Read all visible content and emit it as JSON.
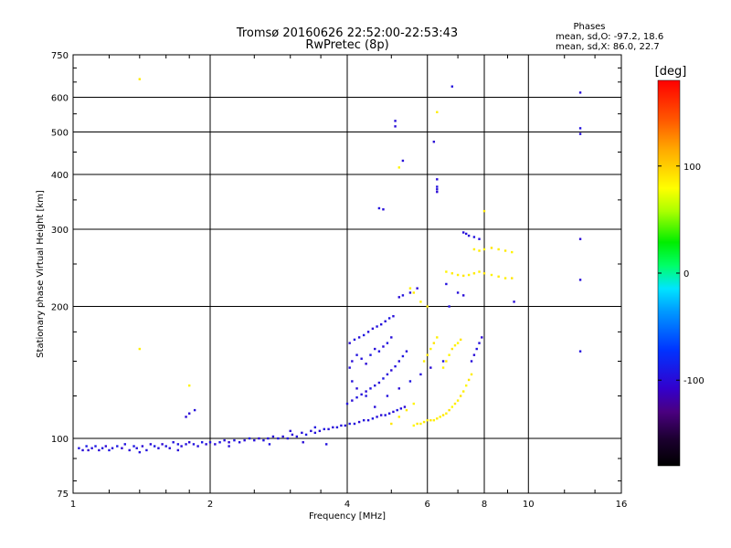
{
  "chart_data": {
    "type": "scatter",
    "title": "Tromsø 20160626 22:52:00-22:53:43",
    "subtitle": "RwPretec (8p)",
    "xlabel": "Frequency [MHz]",
    "ylabel": "Stationary phase Virtual Height [km]",
    "x_scale": "log",
    "y_scale": "log",
    "xlim": [
      1,
      16
    ],
    "ylim": [
      75,
      750
    ],
    "x_ticks": [
      1,
      2,
      4,
      6,
      8,
      10,
      16
    ],
    "y_ticks": [
      75,
      100,
      200,
      300,
      400,
      500,
      600,
      750
    ],
    "grid": true,
    "legend": {
      "title": "Phases",
      "lines": [
        "mean, sd,O: -97.2, 18.6",
        "mean, sd,X:  86.0, 22.7"
      ]
    },
    "colorbar": {
      "label": "[deg]",
      "range": [
        -180,
        180
      ],
      "ticks": [
        100,
        0,
        -100
      ]
    },
    "series": [
      {
        "name": "O",
        "points": [
          [
            1.03,
            95,
            -95
          ],
          [
            1.05,
            94,
            -100
          ],
          [
            1.07,
            96,
            -90
          ],
          [
            1.08,
            94,
            -105
          ],
          [
            1.1,
            95,
            -98
          ],
          [
            1.12,
            96,
            -92
          ],
          [
            1.14,
            94,
            -100
          ],
          [
            1.16,
            95,
            -96
          ],
          [
            1.18,
            96,
            -102
          ],
          [
            1.2,
            94,
            -94
          ],
          [
            1.22,
            95,
            -99
          ],
          [
            1.25,
            96,
            -91
          ],
          [
            1.28,
            95,
            -104
          ],
          [
            1.3,
            97,
            -96
          ],
          [
            1.33,
            94,
            -100
          ],
          [
            1.36,
            96,
            -93
          ],
          [
            1.38,
            95,
            -98
          ],
          [
            1.42,
            96,
            -102
          ],
          [
            1.45,
            94,
            -95
          ],
          [
            1.48,
            97,
            -100
          ],
          [
            1.51,
            96,
            -92
          ],
          [
            1.54,
            95,
            -99
          ],
          [
            1.57,
            97,
            -103
          ],
          [
            1.6,
            96,
            -94
          ],
          [
            1.63,
            95,
            -100
          ],
          [
            1.66,
            98,
            -96
          ],
          [
            1.7,
            97,
            -93
          ],
          [
            1.73,
            96,
            -100
          ],
          [
            1.77,
            97,
            -97
          ],
          [
            1.8,
            98,
            -102
          ],
          [
            1.84,
            97,
            -95
          ],
          [
            1.88,
            96,
            -98
          ],
          [
            1.92,
            98,
            -92
          ],
          [
            1.96,
            97,
            -100
          ],
          [
            2.0,
            98,
            -96
          ],
          [
            2.05,
            97,
            -101
          ],
          [
            2.1,
            98,
            -94
          ],
          [
            2.15,
            99,
            -98
          ],
          [
            2.2,
            98,
            -103
          ],
          [
            2.26,
            99,
            -95
          ],
          [
            2.32,
            98,
            -97
          ],
          [
            2.38,
            99,
            -100
          ],
          [
            2.44,
            100,
            -93
          ],
          [
            2.5,
            99,
            -98
          ],
          [
            2.56,
            100,
            -102
          ],
          [
            2.62,
            99,
            -95
          ],
          [
            2.68,
            100,
            -97
          ],
          [
            2.75,
            101,
            -100
          ],
          [
            2.82,
            100,
            -94
          ],
          [
            2.89,
            101,
            -99
          ],
          [
            2.96,
            100,
            -96
          ],
          [
            3.03,
            102,
            -101
          ],
          [
            3.1,
            101,
            -95
          ],
          [
            3.18,
            103,
            -98
          ],
          [
            3.25,
            102,
            -92
          ],
          [
            3.33,
            104,
            -100
          ],
          [
            3.4,
            103,
            -96
          ],
          [
            3.48,
            104,
            -99
          ],
          [
            3.56,
            105,
            -94
          ],
          [
            3.64,
            105,
            -98
          ],
          [
            3.72,
            106,
            -101
          ],
          [
            3.8,
            106,
            -95
          ],
          [
            3.88,
            107,
            -97
          ],
          [
            3.96,
            107,
            -100
          ],
          [
            4.05,
            108,
            -93
          ],
          [
            4.15,
            108,
            -98
          ],
          [
            4.25,
            109,
            -102
          ],
          [
            4.35,
            110,
            -96
          ],
          [
            4.45,
            110,
            -99
          ],
          [
            4.55,
            111,
            -94
          ],
          [
            4.65,
            112,
            -98
          ],
          [
            4.75,
            113,
            -101
          ],
          [
            4.85,
            113,
            -95
          ],
          [
            4.95,
            114,
            -97
          ],
          [
            5.05,
            115,
            -100
          ],
          [
            5.15,
            116,
            -93
          ],
          [
            5.25,
            117,
            -98
          ],
          [
            5.35,
            118,
            -102
          ],
          [
            1.4,
            93,
            -96
          ],
          [
            1.7,
            94,
            -100
          ],
          [
            2.2,
            96,
            -98
          ],
          [
            2.7,
            97,
            -94
          ],
          [
            3.2,
            98,
            -100
          ],
          [
            3.6,
            97,
            -96
          ],
          [
            3.0,
            104,
            -99
          ],
          [
            3.4,
            106,
            -95
          ],
          [
            1.8,
            114,
            -100
          ],
          [
            1.85,
            116,
            -98
          ],
          [
            1.77,
            112,
            -102
          ],
          [
            4.0,
            120,
            -96
          ],
          [
            4.1,
            122,
            -100
          ],
          [
            4.2,
            124,
            -94
          ],
          [
            4.3,
            126,
            -98
          ],
          [
            4.4,
            128,
            -101
          ],
          [
            4.5,
            130,
            -95
          ],
          [
            4.6,
            132,
            -97
          ],
          [
            4.7,
            134,
            -100
          ],
          [
            4.8,
            137,
            -93
          ],
          [
            4.9,
            140,
            -98
          ],
          [
            5.0,
            143,
            -102
          ],
          [
            5.1,
            146,
            -96
          ],
          [
            5.2,
            150,
            -99
          ],
          [
            5.3,
            154,
            -94
          ],
          [
            5.4,
            158,
            -98
          ],
          [
            4.05,
            145,
            -98
          ],
          [
            4.1,
            150,
            -100
          ],
          [
            4.2,
            155,
            -95
          ],
          [
            4.3,
            152,
            -97
          ],
          [
            4.4,
            148,
            -101
          ],
          [
            4.5,
            155,
            -94
          ],
          [
            4.6,
            160,
            -99
          ],
          [
            4.7,
            158,
            -96
          ],
          [
            4.8,
            162,
            -100
          ],
          [
            4.9,
            165,
            -93
          ],
          [
            5.0,
            170,
            -98
          ],
          [
            4.05,
            165,
            -100
          ],
          [
            4.15,
            168,
            -96
          ],
          [
            4.25,
            170,
            -99
          ],
          [
            4.35,
            172,
            -94
          ],
          [
            4.45,
            175,
            -98
          ],
          [
            4.55,
            178,
            -102
          ],
          [
            4.65,
            180,
            -95
          ],
          [
            4.75,
            182,
            -97
          ],
          [
            4.85,
            185,
            -100
          ],
          [
            4.95,
            188,
            -93
          ],
          [
            5.05,
            190,
            -98
          ],
          [
            5.2,
            210,
            -100
          ],
          [
            5.3,
            212,
            -96
          ],
          [
            5.5,
            215,
            -98
          ],
          [
            5.7,
            220,
            -102
          ],
          [
            4.1,
            135,
            -98
          ],
          [
            4.2,
            130,
            -100
          ],
          [
            4.4,
            125,
            -95
          ],
          [
            4.6,
            118,
            -99
          ],
          [
            4.9,
            125,
            -96
          ],
          [
            5.2,
            130,
            -100
          ],
          [
            5.5,
            135,
            -94
          ],
          [
            5.8,
            140,
            -98
          ],
          [
            6.1,
            145,
            -101
          ],
          [
            6.5,
            150,
            -95
          ],
          [
            7.5,
            150,
            -98
          ],
          [
            7.6,
            155,
            -100
          ],
          [
            7.7,
            160,
            -95
          ],
          [
            7.8,
            165,
            -98
          ],
          [
            7.9,
            170,
            -102
          ],
          [
            7.2,
            295,
            -99
          ],
          [
            7.3,
            293,
            -96
          ],
          [
            7.4,
            290,
            -100
          ],
          [
            7.6,
            288,
            -95
          ],
          [
            7.8,
            285,
            -98
          ],
          [
            6.3,
            390,
            -100
          ],
          [
            6.3,
            375,
            -96
          ],
          [
            6.3,
            370,
            -98
          ],
          [
            6.3,
            365,
            -102
          ],
          [
            5.1,
            530,
            -98
          ],
          [
            5.1,
            515,
            -100
          ],
          [
            4.7,
            335,
            -96
          ],
          [
            4.8,
            333,
            -99
          ],
          [
            6.8,
            635,
            -97
          ],
          [
            13.0,
            615,
            -100
          ],
          [
            13.0,
            510,
            -96
          ],
          [
            13.0,
            495,
            -98
          ],
          [
            13.0,
            285,
            -102
          ],
          [
            13.0,
            230,
            -99
          ],
          [
            13.0,
            158,
            -97
          ],
          [
            9.3,
            205,
            -100
          ],
          [
            6.6,
            225,
            -96
          ],
          [
            7.0,
            215,
            -98
          ],
          [
            7.2,
            212,
            -100
          ],
          [
            6.7,
            200,
            -97
          ],
          [
            5.3,
            430,
            -99
          ],
          [
            6.2,
            475,
            -101
          ]
        ]
      },
      {
        "name": "X",
        "points": [
          [
            6.2,
            110,
            85
          ],
          [
            6.3,
            111,
            88
          ],
          [
            6.4,
            112,
            83
          ],
          [
            6.5,
            113,
            90
          ],
          [
            6.6,
            114,
            86
          ],
          [
            6.7,
            116,
            92
          ],
          [
            6.8,
            118,
            80
          ],
          [
            6.9,
            120,
            88
          ],
          [
            7.0,
            122,
            84
          ],
          [
            7.1,
            125,
            90
          ],
          [
            7.2,
            128,
            86
          ],
          [
            7.3,
            132,
            82
          ],
          [
            7.4,
            136,
            90
          ],
          [
            7.5,
            140,
            87
          ],
          [
            5.8,
            108,
            84
          ],
          [
            5.9,
            109,
            88
          ],
          [
            6.0,
            110,
            86
          ],
          [
            6.1,
            110,
            90
          ],
          [
            5.6,
            107,
            82
          ],
          [
            5.7,
            108,
            88
          ],
          [
            6.5,
            145,
            86
          ],
          [
            6.6,
            150,
            88
          ],
          [
            6.7,
            155,
            84
          ],
          [
            6.8,
            160,
            90
          ],
          [
            6.9,
            163,
            86
          ],
          [
            7.0,
            165,
            82
          ],
          [
            7.1,
            168,
            90
          ],
          [
            5.9,
            150,
            86
          ],
          [
            6.0,
            155,
            88
          ],
          [
            6.1,
            160,
            84
          ],
          [
            6.2,
            165,
            90
          ],
          [
            6.3,
            170,
            86
          ],
          [
            6.6,
            240,
            84
          ],
          [
            6.8,
            238,
            88
          ],
          [
            7.0,
            236,
            86
          ],
          [
            7.2,
            235,
            90
          ],
          [
            7.4,
            236,
            84
          ],
          [
            7.6,
            238,
            88
          ],
          [
            7.8,
            240,
            86
          ],
          [
            8.0,
            238,
            90
          ],
          [
            8.3,
            236,
            84
          ],
          [
            8.6,
            234,
            88
          ],
          [
            8.9,
            232,
            86
          ],
          [
            9.2,
            232,
            90
          ],
          [
            7.6,
            270,
            86
          ],
          [
            7.8,
            268,
            88
          ],
          [
            8.0,
            270,
            84
          ],
          [
            8.3,
            272,
            90
          ],
          [
            8.6,
            270,
            86
          ],
          [
            8.9,
            268,
            88
          ],
          [
            9.2,
            266,
            84
          ],
          [
            5.5,
            220,
            86
          ],
          [
            5.6,
            215,
            88
          ],
          [
            5.8,
            205,
            84
          ],
          [
            6.0,
            200,
            90
          ],
          [
            8.0,
            330,
            88
          ],
          [
            6.3,
            555,
            86
          ],
          [
            5.2,
            415,
            84
          ],
          [
            1.4,
            160,
            86
          ],
          [
            1.4,
            660,
            88
          ],
          [
            1.8,
            132,
            84
          ],
          [
            5.0,
            108,
            90
          ],
          [
            5.2,
            112,
            86
          ],
          [
            5.4,
            116,
            88
          ],
          [
            5.6,
            120,
            84
          ]
        ]
      }
    ]
  }
}
